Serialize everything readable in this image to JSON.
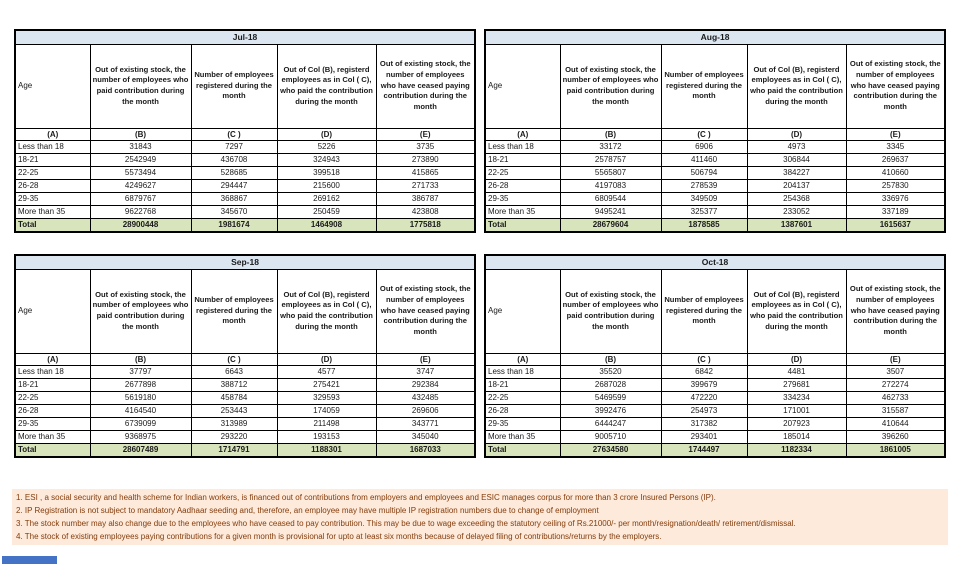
{
  "colors": {
    "title_bg": "#DCE6F1",
    "title_text": "#17375E",
    "total_bg": "#D8E4BC",
    "footnote_bg": "#FDEADA",
    "footnote_text": "#843C0C",
    "border": "#000000",
    "tab_blue": "#4472C4"
  },
  "column_headers": {
    "age": "Age",
    "b": "Out of existing stock, the number of employees who paid contribution during the month",
    "c": "Number of employees registered during the month",
    "d": "Out of Col (B), registerd employees as in Col ( C), who paid the contribution during the month",
    "e": "Out of existing stock, the number of employees who have ceased paying contribution during the month"
  },
  "column_letters": [
    "(A)",
    "(B)",
    "(C )",
    "(D)",
    "(E)"
  ],
  "age_groups": [
    "Less than 18",
    "18-21",
    "22-25",
    "26-28",
    "29-35",
    "More than 35"
  ],
  "total_label": "Total",
  "tables": [
    {
      "month": "Jul-18",
      "rows": [
        [
          31843,
          7297,
          5226,
          3735
        ],
        [
          2542949,
          436708,
          324943,
          273890
        ],
        [
          5573494,
          528685,
          399518,
          415865
        ],
        [
          4249627,
          294447,
          215600,
          271733
        ],
        [
          6879767,
          368867,
          269162,
          386787
        ],
        [
          9622768,
          345670,
          250459,
          423808
        ]
      ],
      "totals": [
        28900448,
        1981674,
        1464908,
        1775818
      ]
    },
    {
      "month": "Aug-18",
      "rows": [
        [
          33172,
          6906,
          4973,
          3345
        ],
        [
          2578757,
          411460,
          306844,
          269637
        ],
        [
          5565807,
          506794,
          384227,
          410660
        ],
        [
          4197083,
          278539,
          204137,
          257830
        ],
        [
          6809544,
          349509,
          254368,
          336976
        ],
        [
          9495241,
          325377,
          233052,
          337189
        ]
      ],
      "totals": [
        28679604,
        1878585,
        1387601,
        1615637
      ]
    },
    {
      "month": "Sep-18",
      "rows": [
        [
          37797,
          6643,
          4577,
          3747
        ],
        [
          2677898,
          388712,
          275421,
          292384
        ],
        [
          5619180,
          458784,
          329593,
          432485
        ],
        [
          4164540,
          253443,
          174059,
          269606
        ],
        [
          6739099,
          313989,
          211498,
          343771
        ],
        [
          9368975,
          293220,
          193153,
          345040
        ]
      ],
      "totals": [
        28607489,
        1714791,
        1188301,
        1687033
      ]
    },
    {
      "month": "Oct-18",
      "rows": [
        [
          35520,
          6842,
          4481,
          3507
        ],
        [
          2687028,
          399679,
          279681,
          272274
        ],
        [
          5469599,
          472220,
          334234,
          462733
        ],
        [
          3992476,
          254973,
          171001,
          315587
        ],
        [
          6444247,
          317382,
          207923,
          410644
        ],
        [
          9005710,
          293401,
          185014,
          396260
        ]
      ],
      "totals": [
        27634580,
        1744497,
        1182334,
        1861005
      ]
    }
  ],
  "footnotes": [
    "1. ESI , a social security and health scheme for Indian workers, is financed out of contributions from employers and employees and ESIC manages corpus for more than 3 crore Insured Persons (IP).",
    "2. IP Registration is not subject to mandatory Aadhaar seeding and, therefore, an employee may have multiple IP registration numbers due to change of employment",
    "3. The stock number may also change due to the employees who have ceased to pay contribution. This may be due to wage exceeding the statutory ceiling of Rs.21000/- per month/resignation/death/ retirement/dismissal.",
    "4. The stock of existing employees paying contributions for a given month is provisional for upto at least six months because of delayed filing of contributions/returns by the employers."
  ]
}
